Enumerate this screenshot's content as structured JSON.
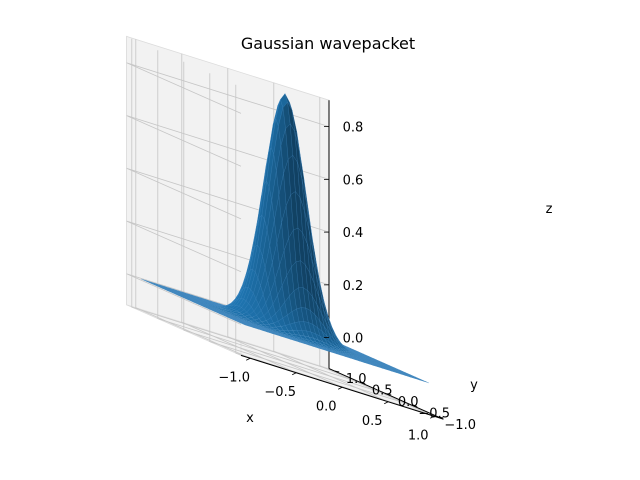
{
  "chart_data": {
    "type": "surface3d",
    "title": "Gaussian wavepacket",
    "xlabel": "x",
    "ylabel": "y",
    "zlabel": "z",
    "xlim": [
      -1.0,
      1.0
    ],
    "ylim": [
      -1.0,
      1.0
    ],
    "zlim": [
      0.0,
      0.9
    ],
    "xticks": [
      "−1.0",
      "−0.5",
      "0.0",
      "0.5",
      "1.0"
    ],
    "xtick_values": [
      -1.0,
      -0.5,
      0.0,
      0.5,
      1.0
    ],
    "yticks": [
      "−1.0",
      "−0.5",
      "0.0",
      "0.5",
      "1.0"
    ],
    "ytick_values": [
      -1.0,
      -0.5,
      0.0,
      0.5,
      1.0
    ],
    "zticks": [
      "0.0",
      "0.2",
      "0.4",
      "0.6",
      "0.8"
    ],
    "ztick_values": [
      0.0,
      0.2,
      0.4,
      0.6,
      0.8
    ],
    "surface": {
      "function": "exp",
      "amplitude": 0.9,
      "center": [
        0.0,
        0.0
      ],
      "sigma": 0.2,
      "grid_points": 40
    },
    "surface_color": "#1f77b4",
    "pane_color": "#f2f2f2",
    "grid": true
  }
}
